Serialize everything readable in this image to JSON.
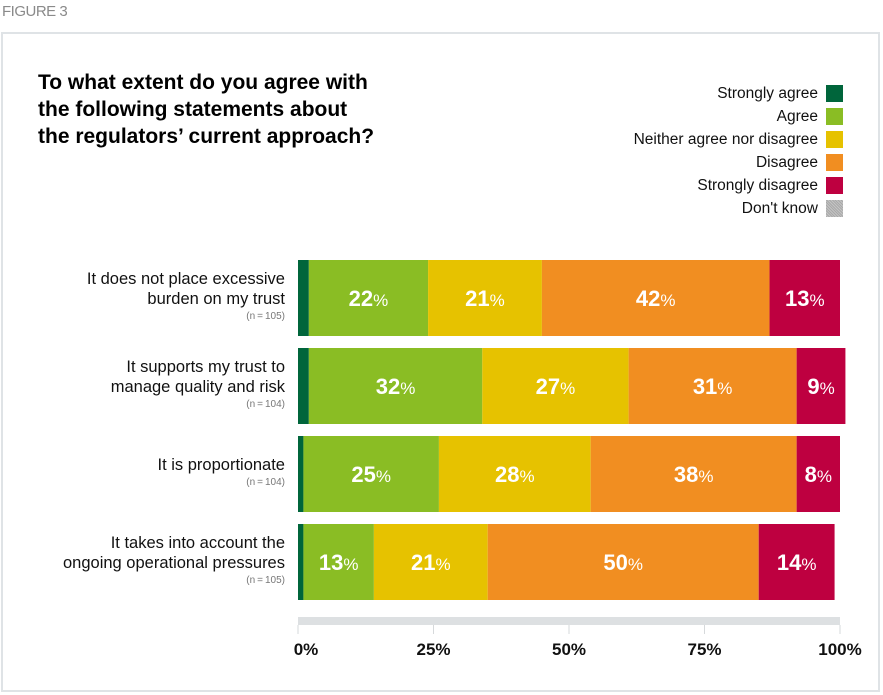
{
  "figure_label": "FIGURE 3",
  "chart_data": {
    "type": "bar",
    "orientation": "horizontal",
    "stacked": true,
    "title": "To what extent do you agree with the following statements about the regulators’ current approach?",
    "title_lines": [
      "To what extent do you agree with",
      "the following statements about",
      "the regulators’ current approach?"
    ],
    "categories": [
      {
        "lines": [
          "It does not place excessive",
          "burden on my trust"
        ],
        "n": "(n = 105)"
      },
      {
        "lines": [
          "It supports my trust to",
          "manage quality and risk"
        ],
        "n": "(n = 104)"
      },
      {
        "lines": [
          "It is proportionate"
        ],
        "n": "(n = 104)"
      },
      {
        "lines": [
          "It takes into account the",
          "ongoing operational pressures"
        ],
        "n": "(n = 105)"
      }
    ],
    "series": [
      {
        "name": "Strongly agree",
        "color": "#00653b",
        "values": [
          2,
          2,
          1,
          1
        ],
        "labels": [
          "",
          "",
          "",
          ""
        ]
      },
      {
        "name": "Agree",
        "color": "#8abd24",
        "values": [
          22,
          32,
          25,
          13
        ],
        "labels": [
          "22",
          "32",
          "25",
          "13"
        ]
      },
      {
        "name": "Neither agree nor disagree",
        "color": "#e6c200",
        "values": [
          21,
          27,
          28,
          21
        ],
        "labels": [
          "21",
          "27",
          "28",
          "21"
        ]
      },
      {
        "name": "Disagree",
        "color": "#f18e21",
        "values": [
          42,
          31,
          38,
          50
        ],
        "labels": [
          "42",
          "31",
          "38",
          "50"
        ]
      },
      {
        "name": "Strongly disagree",
        "color": "#be0040",
        "values": [
          13,
          9,
          8,
          14
        ],
        "labels": [
          "13",
          "9",
          "8",
          "14"
        ]
      },
      {
        "name": "Don't know",
        "color": "#b3b3b3",
        "values": [
          0,
          0,
          0,
          0
        ],
        "labels": [
          "",
          "",
          "",
          ""
        ]
      }
    ],
    "xlim": [
      0,
      100
    ],
    "xticks": [
      "0%",
      "25%",
      "50%",
      "75%",
      "100%"
    ],
    "xtick_values": [
      0,
      25,
      50,
      75,
      100
    ],
    "value_suffix": "%",
    "legend_position": "top-right",
    "grid": false,
    "xlabel": "",
    "ylabel": ""
  }
}
